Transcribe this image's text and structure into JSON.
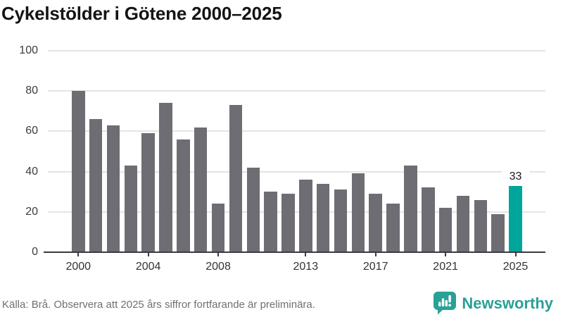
{
  "title": "Cykelstölder i Götene 2000–2025",
  "footer": {
    "source": "Källa: Brå. Observera att 2025 års siffror fortfarande är preliminära.",
    "brand": "Newsworthy",
    "logo_icon": "speech-bubble-with-bar-chart-and-exclamation"
  },
  "colors": {
    "bar": "#6e6d73",
    "accent": "#00a59b",
    "grid": "#e4e4e4",
    "axis": "#3a3a40",
    "title_text": "#141414",
    "tick_text": "#3d3d3d",
    "xtick_text": "#333333",
    "source_text": "#707070",
    "brand_teal": "#2aa096",
    "annotation_text": "#1a1a1a",
    "background": "#ffffff"
  },
  "chart_data": {
    "type": "bar",
    "title": "Cykelstölder i Götene 2000–2025",
    "categories": [
      2000,
      2001,
      2002,
      2003,
      2004,
      2005,
      2006,
      2007,
      2008,
      2009,
      2010,
      2011,
      2012,
      2013,
      2014,
      2015,
      2016,
      2017,
      2018,
      2019,
      2020,
      2021,
      2022,
      2023,
      2024,
      2025
    ],
    "values": [
      80,
      66,
      63,
      43,
      59,
      74,
      56,
      62,
      24,
      73,
      42,
      30,
      29,
      36,
      34,
      31,
      39,
      29,
      24,
      43,
      32,
      22,
      28,
      26,
      19,
      33
    ],
    "xlabel": "",
    "ylabel": "",
    "ylim": [
      0,
      100
    ],
    "yticks": [
      0,
      20,
      40,
      60,
      80,
      100
    ],
    "xticks": [
      2000,
      2004,
      2008,
      2013,
      2017,
      2021,
      2025
    ],
    "grid": true,
    "legend": false,
    "highlight_index": 25,
    "annotation": {
      "index": 25,
      "text": "33"
    }
  }
}
